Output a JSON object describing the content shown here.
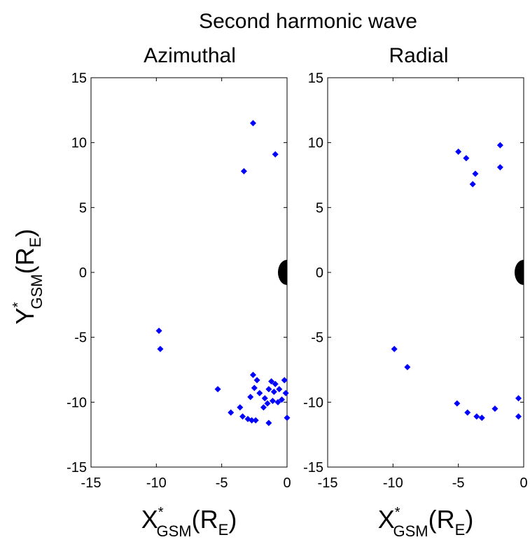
{
  "figure": {
    "title": "Second harmonic wave",
    "ylabel": {
      "main": "Y",
      "sup": "*",
      "sub": "GSM",
      "paren_open": "(R",
      "paren_sub": "E",
      "paren_close": ")"
    },
    "xlabel": {
      "main": "X",
      "sup": "*",
      "sub": "GSM",
      "paren_open": "(R",
      "paren_sub": "E",
      "paren_close": ")"
    }
  },
  "colors": {
    "marker": "#0000ff",
    "earth": "#000000",
    "axes": "#000000"
  },
  "chart_data": [
    {
      "type": "scatter",
      "title": "Azimuthal",
      "xlim": [
        -15,
        0
      ],
      "ylim": [
        -15,
        15
      ],
      "xticks": [
        -15,
        -10,
        -5,
        0
      ],
      "yticks": [
        -15,
        -10,
        -5,
        0,
        5,
        10,
        15
      ],
      "grid": false,
      "legend": "none",
      "marker": "diamond",
      "earth_marker": {
        "x": 0,
        "y": 0,
        "label": ""
      },
      "points": [
        {
          "x": -2.6,
          "y": 11.5
        },
        {
          "x": -0.9,
          "y": 9.1
        },
        {
          "x": -3.3,
          "y": 7.8
        },
        {
          "x": -9.8,
          "y": -4.5
        },
        {
          "x": -9.7,
          "y": -5.9
        },
        {
          "x": -5.3,
          "y": -9.0
        },
        {
          "x": -2.6,
          "y": -7.9
        },
        {
          "x": -2.3,
          "y": -8.3
        },
        {
          "x": -1.2,
          "y": -8.4
        },
        {
          "x": -0.9,
          "y": -8.6
        },
        {
          "x": -0.2,
          "y": -8.3
        },
        {
          "x": -2.5,
          "y": -8.9
        },
        {
          "x": -2.1,
          "y": -9.3
        },
        {
          "x": -1.4,
          "y": -9.0
        },
        {
          "x": -1.0,
          "y": -9.2
        },
        {
          "x": -0.6,
          "y": -9.0
        },
        {
          "x": -0.1,
          "y": -9.3
        },
        {
          "x": -2.8,
          "y": -9.6
        },
        {
          "x": -1.7,
          "y": -9.7
        },
        {
          "x": -1.1,
          "y": -9.9
        },
        {
          "x": -0.7,
          "y": -10.0
        },
        {
          "x": -0.4,
          "y": -9.8
        },
        {
          "x": -1.5,
          "y": -10.1
        },
        {
          "x": -1.8,
          "y": -10.4
        },
        {
          "x": -3.6,
          "y": -10.4
        },
        {
          "x": -4.3,
          "y": -10.8
        },
        {
          "x": -3.4,
          "y": -11.1
        },
        {
          "x": -3.0,
          "y": -11.3
        },
        {
          "x": -2.7,
          "y": -11.4
        },
        {
          "x": -2.4,
          "y": -11.4
        },
        {
          "x": -1.4,
          "y": -11.6
        },
        {
          "x": 0.0,
          "y": -11.2
        }
      ]
    },
    {
      "type": "scatter",
      "title": "Radial",
      "xlim": [
        -15,
        0
      ],
      "ylim": [
        -15,
        15
      ],
      "xticks": [
        -15,
        -10,
        -5,
        0
      ],
      "yticks": [
        -15,
        -10,
        -5,
        0,
        5,
        10,
        15
      ],
      "grid": false,
      "legend": "none",
      "marker": "diamond",
      "earth_marker": {
        "x": 0,
        "y": 0,
        "label": ""
      },
      "points": [
        {
          "x": -5.0,
          "y": 9.3
        },
        {
          "x": -4.4,
          "y": 8.8
        },
        {
          "x": -1.8,
          "y": 9.8
        },
        {
          "x": -1.8,
          "y": 8.1
        },
        {
          "x": -3.7,
          "y": 7.6
        },
        {
          "x": -3.9,
          "y": 6.8
        },
        {
          "x": -9.9,
          "y": -5.9
        },
        {
          "x": -8.9,
          "y": -7.3
        },
        {
          "x": -5.1,
          "y": -10.1
        },
        {
          "x": -4.3,
          "y": -10.8
        },
        {
          "x": -3.6,
          "y": -11.1
        },
        {
          "x": -3.2,
          "y": -11.2
        },
        {
          "x": -2.2,
          "y": -10.5
        },
        {
          "x": -0.4,
          "y": -9.7
        },
        {
          "x": -0.4,
          "y": -11.1
        }
      ]
    }
  ]
}
